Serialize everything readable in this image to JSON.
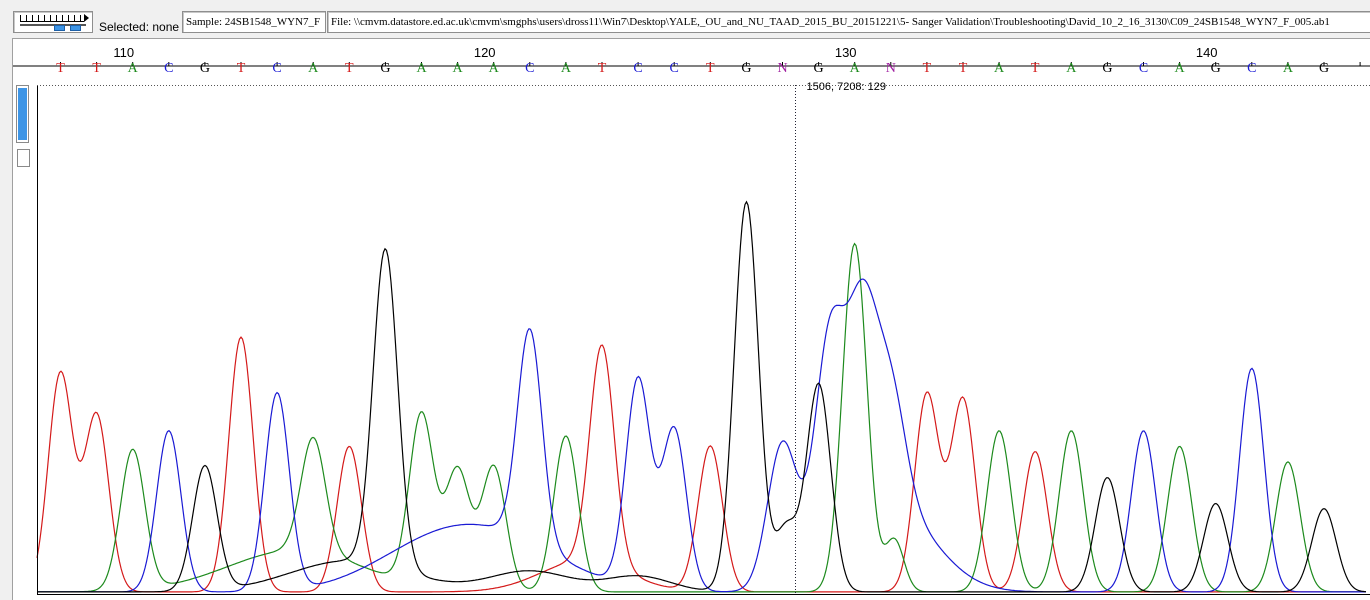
{
  "toolbar": {
    "selected_label": "Selected: none",
    "sample_text": "Sample: 24SB1548_WYN7_F",
    "file_text": "File: \\\\cmvm.datastore.ed.ac.uk\\cmvm\\smgphs\\users\\dross11\\Win7\\Desktop\\YALE,_OU_and_NU_TAAD_2015_BU_20151221\\5- Sanger Validation\\Troubleshooting\\David_10_2_16_3130\\C09_24SB1548_WYN7_F_005.ab1"
  },
  "ruler": {
    "labels": [
      {
        "text": "110",
        "pos": 110
      },
      {
        "text": "120",
        "pos": 120
      },
      {
        "text": "130",
        "pos": 130
      },
      {
        "text": "140",
        "pos": 140
      }
    ]
  },
  "cursor": {
    "readout": "1506, 7208: 129",
    "base_index": 129
  },
  "colors": {
    "A": "#1d8a1d",
    "C": "#1a1ad4",
    "G": "#000000",
    "T": "#d41a1a",
    "N": "#a020a0"
  },
  "chart_data": {
    "type": "line",
    "series_names": [
      "A",
      "C",
      "G",
      "T"
    ],
    "sequence": [
      {
        "pos": 108,
        "base": "T",
        "height": 0.42
      },
      {
        "pos": 109,
        "base": "T",
        "height": 0.34
      },
      {
        "pos": 110,
        "base": "A",
        "height": 0.27
      },
      {
        "pos": 111,
        "base": "C",
        "height": 0.31
      },
      {
        "pos": 112,
        "base": "G",
        "height": 0.24
      },
      {
        "pos": 113,
        "base": "T",
        "height": 0.49
      },
      {
        "pos": 114,
        "base": "C",
        "height": 0.38
      },
      {
        "pos": 115,
        "base": "A",
        "height": 0.22
      },
      {
        "pos": 116,
        "base": "T",
        "height": 0.28
      },
      {
        "pos": 117,
        "base": "G",
        "height": 0.61
      },
      {
        "pos": 118,
        "base": "A",
        "height": 0.33
      },
      {
        "pos": 119,
        "base": "A",
        "height": 0.23
      },
      {
        "pos": 120,
        "base": "A",
        "height": 0.24
      },
      {
        "pos": 121,
        "base": "C",
        "height": 0.41
      },
      {
        "pos": 122,
        "base": "A",
        "height": 0.3
      },
      {
        "pos": 123,
        "base": "T",
        "height": 0.42
      },
      {
        "pos": 124,
        "base": "C",
        "height": 0.4
      },
      {
        "pos": 125,
        "base": "C",
        "height": 0.31
      },
      {
        "pos": 126,
        "base": "T",
        "height": 0.28
      },
      {
        "pos": 127,
        "base": "G",
        "height": 0.75
      },
      {
        "pos": 128,
        "base": "N",
        "height": 0.17
      },
      {
        "pos": 129,
        "base": "G",
        "height": 0.4
      },
      {
        "pos": 130,
        "base": "A",
        "height": 0.67
      },
      {
        "pos": 131,
        "base": "N",
        "height": 0.3
      },
      {
        "pos": 132,
        "base": "T",
        "height": 0.38
      },
      {
        "pos": 133,
        "base": "T",
        "height": 0.37
      },
      {
        "pos": 134,
        "base": "A",
        "height": 0.31
      },
      {
        "pos": 135,
        "base": "T",
        "height": 0.27
      },
      {
        "pos": 136,
        "base": "A",
        "height": 0.31
      },
      {
        "pos": 137,
        "base": "G",
        "height": 0.22
      },
      {
        "pos": 138,
        "base": "C",
        "height": 0.31
      },
      {
        "pos": 139,
        "base": "A",
        "height": 0.28
      },
      {
        "pos": 140,
        "base": "G",
        "height": 0.17
      },
      {
        "pos": 141,
        "base": "C",
        "height": 0.43
      },
      {
        "pos": 142,
        "base": "A",
        "height": 0.25
      },
      {
        "pos": 143,
        "base": "G",
        "height": 0.16
      }
    ],
    "secondary_peaks": [
      {
        "pos": 128,
        "base": "C",
        "height": 0.28
      },
      {
        "pos": 129.3,
        "base": "C",
        "height": 0.43
      },
      {
        "pos": 130.2,
        "base": "C",
        "height": 0.4
      },
      {
        "pos": 131,
        "base": "C",
        "height": 0.22
      }
    ],
    "baseline_bumps": [
      {
        "pos": 114.5,
        "base": "A",
        "height": 0.08,
        "width": 2.5
      },
      {
        "pos": 116,
        "base": "G",
        "height": 0.06,
        "width": 2.2
      },
      {
        "pos": 120,
        "base": "C",
        "height": 0.1,
        "width": 2.5
      },
      {
        "pos": 118,
        "base": "C",
        "height": 0.05,
        "width": 2.2
      },
      {
        "pos": 122.5,
        "base": "T",
        "height": 0.06,
        "width": 1.6
      },
      {
        "pos": 121,
        "base": "G",
        "height": 0.04,
        "width": 1.5
      },
      {
        "pos": 124,
        "base": "G",
        "height": 0.03,
        "width": 1.2
      }
    ],
    "ylim": [
      0,
      1
    ],
    "grid": false
  }
}
